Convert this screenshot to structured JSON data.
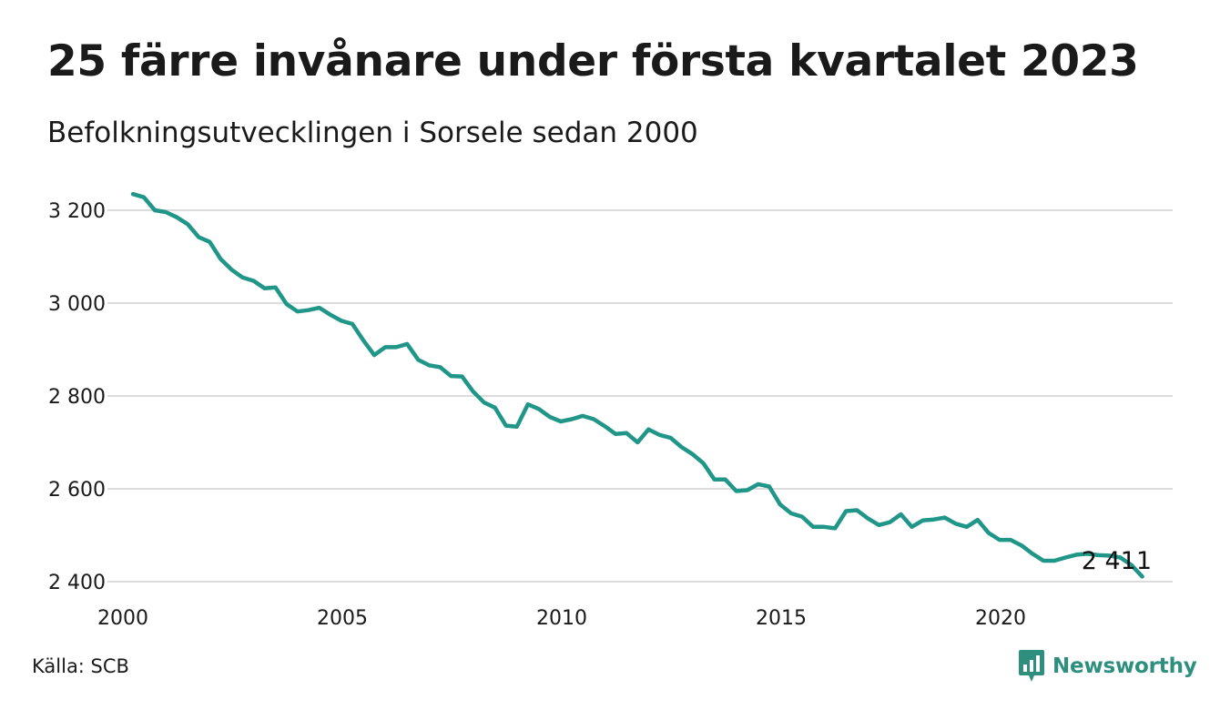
{
  "header": {
    "title": "25 färre invånare under första kvartalet 2023",
    "subtitle": "Befolkningsutvecklingen i Sorsele sedan 2000"
  },
  "footer": {
    "source": "Källa: SCB",
    "brand": "Newsworthy"
  },
  "colors": {
    "line": "#1f9688",
    "grid": "#dcdcdc",
    "brand": "#2e8f7e",
    "text": "#1a1a1a"
  },
  "icons": {
    "brand_logo": "newsworthy-logo-icon"
  },
  "chart_data": {
    "type": "line",
    "title": "25 färre invånare under första kvartalet 2023",
    "subtitle": "Befolkningsutvecklingen i Sorsele sedan 2000",
    "xlabel": "",
    "ylabel": "",
    "x_ticks": [
      "2000",
      "2005",
      "2010",
      "2015",
      "2020"
    ],
    "y_ticks": [
      "2 400",
      "2 600",
      "2 800",
      "3 000",
      "3 200"
    ],
    "ylim": [
      2400,
      3200
    ],
    "grid": "horizontal",
    "legend": "none",
    "end_label": "2 411",
    "x": [
      "2000-03",
      "2000-06",
      "2000-09",
      "2000-12",
      "2001-03",
      "2001-06",
      "2001-09",
      "2001-12",
      "2002-03",
      "2002-06",
      "2002-09",
      "2002-12",
      "2003-03",
      "2003-06",
      "2003-09",
      "2003-12",
      "2004-03",
      "2004-06",
      "2004-09",
      "2004-12",
      "2005-03",
      "2005-06",
      "2005-09",
      "2005-12",
      "2006-03",
      "2006-06",
      "2006-09",
      "2006-12",
      "2007-03",
      "2007-06",
      "2007-09",
      "2007-12",
      "2008-03",
      "2008-06",
      "2008-09",
      "2008-12",
      "2009-03",
      "2009-06",
      "2009-09",
      "2009-12",
      "2010-03",
      "2010-06",
      "2010-09",
      "2010-12",
      "2011-03",
      "2011-06",
      "2011-09",
      "2011-12",
      "2012-03",
      "2012-06",
      "2012-09",
      "2012-12",
      "2013-03",
      "2013-06",
      "2013-09",
      "2013-12",
      "2014-03",
      "2014-06",
      "2014-09",
      "2014-12",
      "2015-03",
      "2015-06",
      "2015-09",
      "2015-12",
      "2016-03",
      "2016-06",
      "2016-09",
      "2016-12",
      "2017-03",
      "2017-06",
      "2017-09",
      "2017-12",
      "2018-03",
      "2018-06",
      "2018-09",
      "2018-12",
      "2019-03",
      "2019-06",
      "2019-09",
      "2019-12",
      "2020-03",
      "2020-06",
      "2020-09",
      "2020-12",
      "2021-03",
      "2021-06",
      "2021-09",
      "2021-12",
      "2022-03",
      "2022-06",
      "2022-09",
      "2022-12",
      "2023-03"
    ],
    "series": [
      {
        "values": [
          3235,
          3228,
          3200,
          3196,
          3185,
          3170,
          3142,
          3132,
          3095,
          3072,
          3055,
          3048,
          3032,
          3034,
          2998,
          2982,
          2985,
          2990,
          2975,
          2962,
          2955,
          2920,
          2888,
          2905,
          2905,
          2912,
          2878,
          2866,
          2862,
          2843,
          2842,
          2810,
          2786,
          2775,
          2736,
          2734,
          2782,
          2772,
          2755,
          2745,
          2750,
          2757,
          2750,
          2735,
          2718,
          2720,
          2700,
          2728,
          2716,
          2710,
          2690,
          2675,
          2655,
          2620,
          2620,
          2595,
          2597,
          2610,
          2605,
          2566,
          2547,
          2540,
          2518,
          2518,
          2515,
          2552,
          2554,
          2536,
          2522,
          2528,
          2545,
          2518,
          2532,
          2534,
          2538,
          2525,
          2518,
          2533,
          2505,
          2490,
          2490,
          2478,
          2460,
          2445,
          2445,
          2452,
          2458,
          2460,
          2457,
          2456,
          2452,
          2436,
          2411
        ]
      }
    ]
  }
}
